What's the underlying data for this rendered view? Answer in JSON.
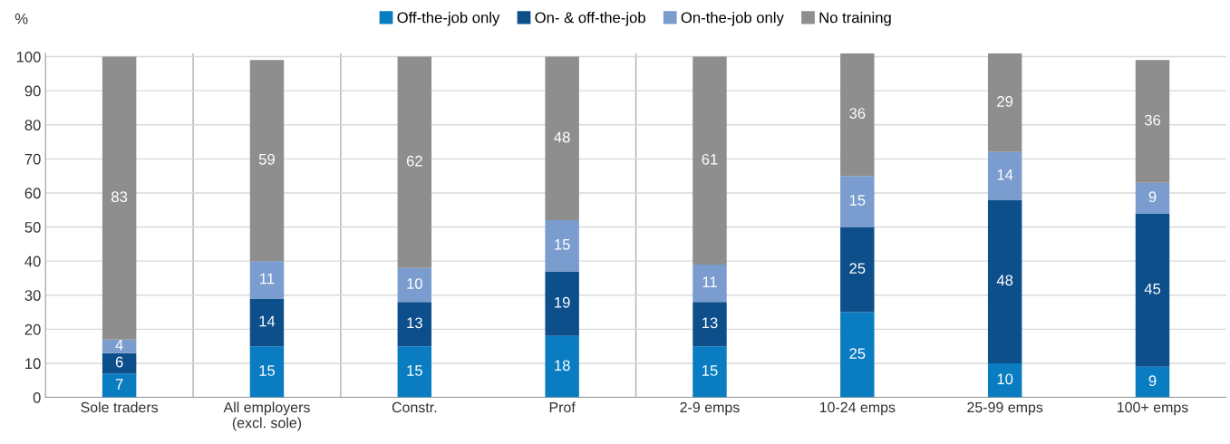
{
  "chart_data": {
    "type": "bar",
    "stacked": true,
    "ylabel": "%",
    "categories": [
      "Sole traders",
      "All employers\n(excl. sole)",
      "Constr.",
      "Prof",
      "2-9 emps",
      "10-24 emps",
      "25-99 emps",
      "100+ emps"
    ],
    "series": [
      {
        "name": "Off-the-job only",
        "color": "#0a7cc1",
        "values": [
          7,
          15,
          15,
          18,
          15,
          25,
          10,
          9
        ],
        "value_labels": [
          "7",
          "15",
          "15",
          "18",
          "15",
          "25",
          "10",
          "9"
        ]
      },
      {
        "name": "On- & off-the-job",
        "color": "#0d4f8b",
        "values": [
          6,
          14,
          13,
          19,
          13,
          25,
          48,
          45
        ]
      },
      {
        "name": "On-the-job only",
        "color": "#7a9cce",
        "values": [
          4,
          11,
          10,
          15,
          11,
          15,
          14,
          9
        ],
        "value_labels": [
          "4",
          "11",
          "10",
          "15",
          "11",
          "15",
          "14",
          "9"
        ]
      },
      {
        "name": "No training",
        "color": "#8e8e8e",
        "values": [
          83,
          59,
          62,
          48,
          61,
          36,
          29,
          36
        ],
        "value_labels": [
          "83",
          "59",
          "62",
          "48",
          "61",
          "36",
          "29",
          "36"
        ]
      }
    ],
    "ylim": [
      0,
      101
    ],
    "yticks": [
      0,
      10,
      20,
      30,
      40,
      50,
      60,
      70,
      80,
      90,
      100
    ],
    "grid": "y",
    "legend": "top",
    "data_labels": true
  }
}
